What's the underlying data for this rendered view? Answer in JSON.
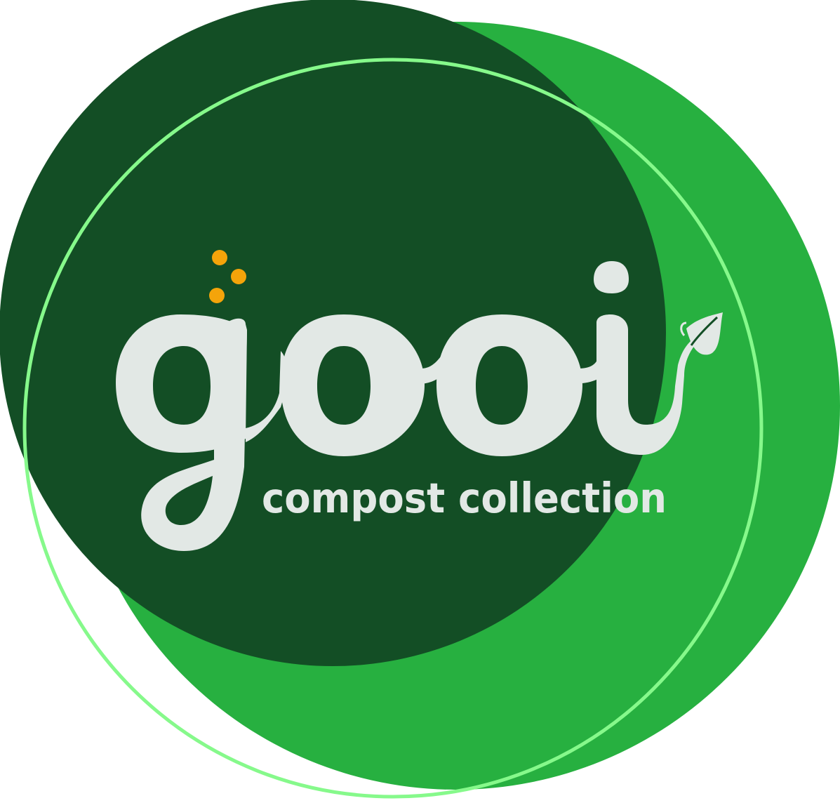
{
  "logo": {
    "wordmark": "gooi",
    "tagline": "compost collection",
    "icons": [
      "seed-dots-icon",
      "leaf-sprout-icon"
    ]
  },
  "colors": {
    "background": "#ffffff",
    "dark_green": "#134e25",
    "bright_green": "#27b040",
    "ring_green": "#86f98b",
    "letter_fill": "#e2e8e5",
    "seed_orange": "#f4a40a"
  }
}
